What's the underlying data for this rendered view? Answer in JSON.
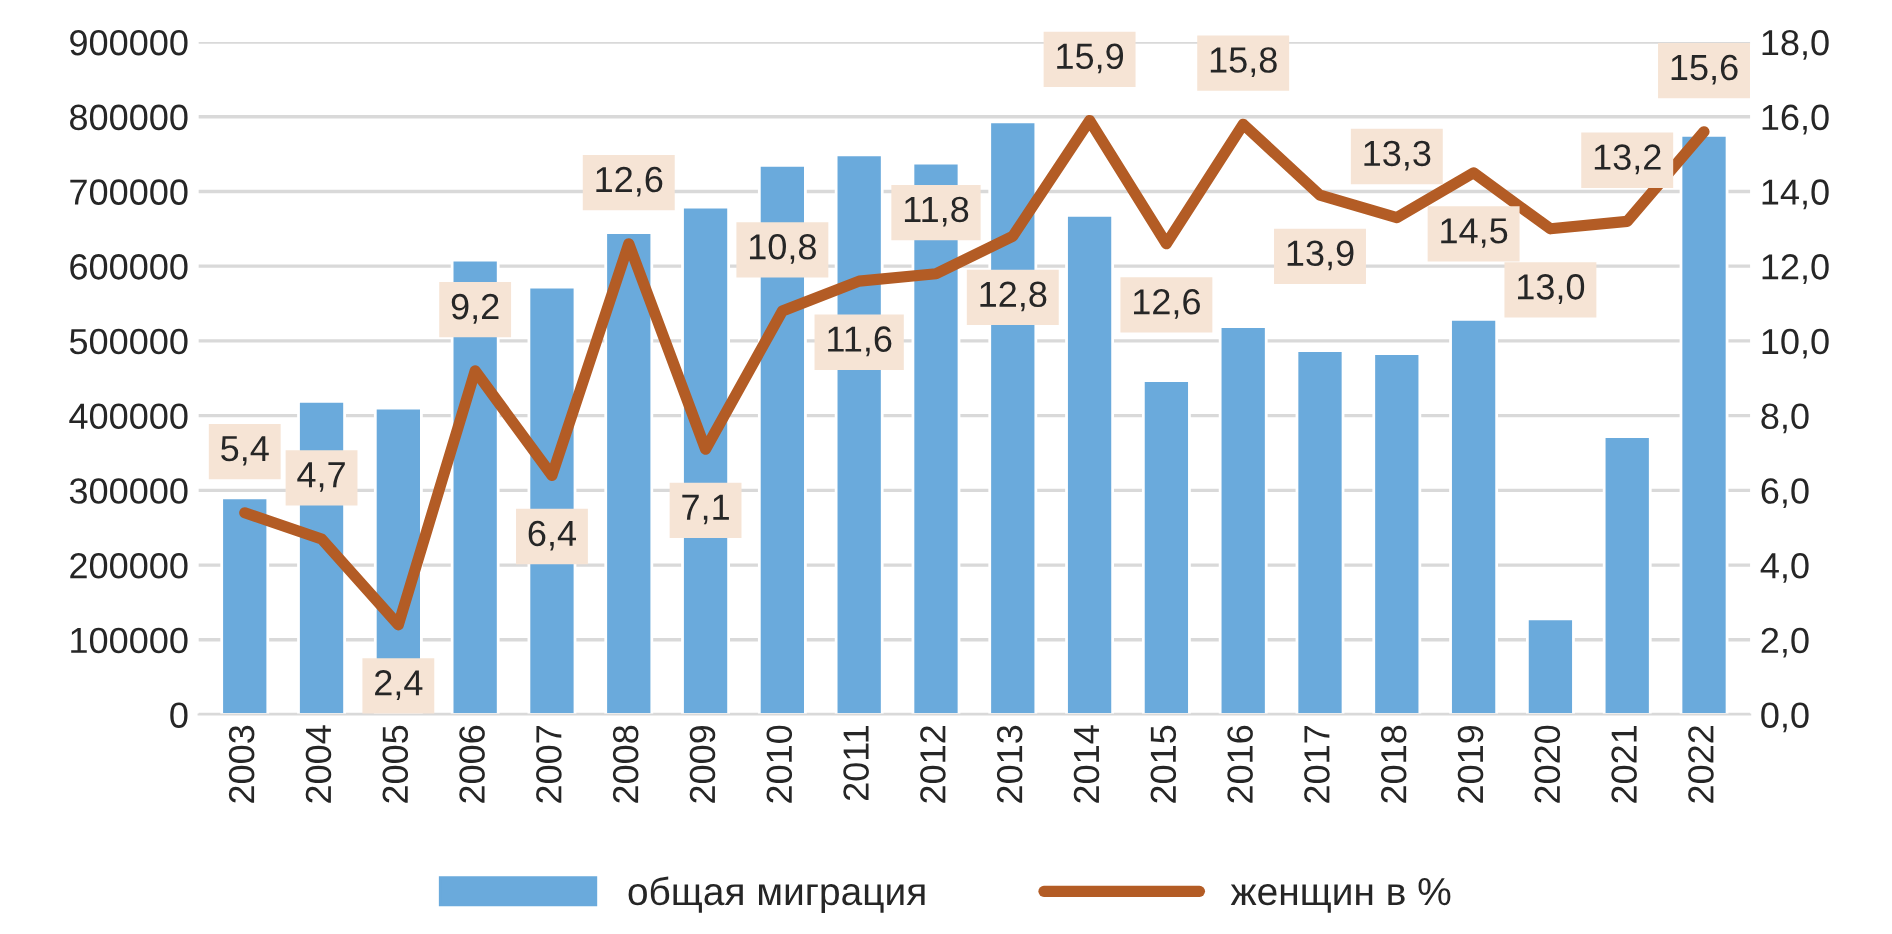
{
  "chart_data": {
    "type": "bar",
    "categories": [
      "2003",
      "2004",
      "2005",
      "2006",
      "2007",
      "2008",
      "2009",
      "2010",
      "2011",
      "2012",
      "2013",
      "2014",
      "2015",
      "2016",
      "2017",
      "2018",
      "2019",
      "2020",
      "2021",
      "2022"
    ],
    "series": [
      {
        "name": "общая миграция",
        "color": "#6aaadc",
        "values": [
          290000,
          419000,
          410000,
          608000,
          572000,
          645000,
          679000,
          735000,
          749000,
          738000,
          793000,
          668000,
          447000,
          519000,
          487000,
          483000,
          529000,
          128000,
          372000,
          775000
        ]
      },
      {
        "name": "женщин в %",
        "type": "line",
        "axis": "y2",
        "color": "#b35c25",
        "values": [
          5.4,
          4.7,
          2.4,
          9.2,
          6.4,
          12.6,
          7.1,
          10.8,
          11.6,
          11.8,
          12.8,
          15.9,
          12.6,
          15.8,
          13.9,
          13.3,
          14.5,
          13.0,
          13.2,
          15.6
        ],
        "value_labels": [
          "5,4",
          "4,7",
          "2,4",
          "9,2",
          "6,4",
          "12,6",
          "7,1",
          "10,8",
          "11,6",
          "11,8",
          "12,8",
          "15,9",
          "12,6",
          "15,8",
          "13,9",
          "13,3",
          "14,5",
          "13,0",
          "13,2",
          "15,6"
        ]
      }
    ],
    "ylim": [
      0,
      900000
    ],
    "yticks": [
      0,
      100000,
      200000,
      300000,
      400000,
      500000,
      600000,
      700000,
      800000,
      900000
    ],
    "y2lim": [
      0,
      18
    ],
    "y2ticks": [
      {
        "value": 0,
        "label": "0,0"
      },
      {
        "value": 2,
        "label": "2,0"
      },
      {
        "value": 4,
        "label": "4,0"
      },
      {
        "value": 6,
        "label": "6,0"
      },
      {
        "value": 8,
        "label": "8,0"
      },
      {
        "value": 10,
        "label": "10,0"
      },
      {
        "value": 12,
        "label": "12,0"
      },
      {
        "value": 14,
        "label": "14,0"
      },
      {
        "value": 16,
        "label": "16,0"
      },
      {
        "value": 18,
        "label": "18,0"
      }
    ],
    "grid": "y",
    "legend": "bottom"
  }
}
